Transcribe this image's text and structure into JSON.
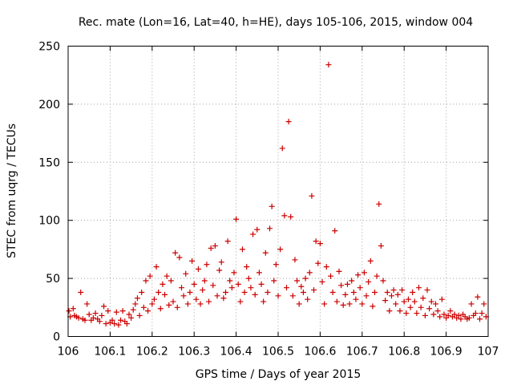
{
  "chart_data": {
    "type": "scatter",
    "title": "Rec. mate (Lon=16, Lat=40, h=HE), days 105-106, 2015, window 004",
    "xlabel": "GPS time / Days of year 2015",
    "ylabel": "STEC from uqrg / TECUs",
    "xlim": [
      106,
      107
    ],
    "ylim": [
      0,
      250
    ],
    "xticks": [
      106,
      106.1,
      106.2,
      106.3,
      106.4,
      106.5,
      106.6,
      106.7,
      106.8,
      106.9,
      107
    ],
    "xtick_labels": [
      "106",
      "106.1",
      "106.2",
      "106.3",
      "106.4",
      "106.5",
      "106.6",
      "106.7",
      "106.8",
      "106.9",
      "107"
    ],
    "yticks": [
      0,
      50,
      100,
      150,
      200,
      250
    ],
    "ytick_labels": [
      "0",
      "50",
      "100",
      "150",
      "200",
      "250"
    ],
    "grid": true,
    "legend": "none",
    "marker": "plus",
    "color": "#cc0000",
    "series": [
      {
        "points": [
          [
            106.002,
            22
          ],
          [
            106.005,
            17
          ],
          [
            106.012,
            24
          ],
          [
            106.015,
            18
          ],
          [
            106.02,
            17
          ],
          [
            106.025,
            16
          ],
          [
            106.03,
            38
          ],
          [
            106.035,
            15
          ],
          [
            106.04,
            14
          ],
          [
            106.045,
            28
          ],
          [
            106.05,
            19
          ],
          [
            106.055,
            14
          ],
          [
            106.06,
            16
          ],
          [
            106.065,
            20
          ],
          [
            106.07,
            15
          ],
          [
            106.075,
            13
          ],
          [
            106.08,
            18
          ],
          [
            106.085,
            26
          ],
          [
            106.09,
            11
          ],
          [
            106.095,
            22
          ],
          [
            106.1,
            12
          ],
          [
            106.105,
            14
          ],
          [
            106.11,
            11
          ],
          [
            106.115,
            21
          ],
          [
            106.12,
            10
          ],
          [
            106.125,
            14
          ],
          [
            106.13,
            22
          ],
          [
            106.135,
            13
          ],
          [
            106.14,
            11
          ],
          [
            106.145,
            19
          ],
          [
            106.15,
            16
          ],
          [
            106.155,
            23
          ],
          [
            106.16,
            28
          ],
          [
            106.165,
            33
          ],
          [
            106.17,
            18
          ],
          [
            106.175,
            38
          ],
          [
            106.18,
            25
          ],
          [
            106.185,
            48
          ],
          [
            106.19,
            22
          ],
          [
            106.195,
            52
          ],
          [
            106.2,
            28
          ],
          [
            106.205,
            32
          ],
          [
            106.21,
            60
          ],
          [
            106.215,
            38
          ],
          [
            106.22,
            24
          ],
          [
            106.225,
            45
          ],
          [
            106.23,
            36
          ],
          [
            106.235,
            52
          ],
          [
            106.24,
            27
          ],
          [
            106.245,
            48
          ],
          [
            106.25,
            30
          ],
          [
            106.255,
            72
          ],
          [
            106.26,
            25
          ],
          [
            106.265,
            68
          ],
          [
            106.27,
            42
          ],
          [
            106.275,
            35
          ],
          [
            106.28,
            54
          ],
          [
            106.285,
            28
          ],
          [
            106.29,
            38
          ],
          [
            106.295,
            65
          ],
          [
            106.3,
            45
          ],
          [
            106.305,
            32
          ],
          [
            106.31,
            58
          ],
          [
            106.315,
            28
          ],
          [
            106.32,
            40
          ],
          [
            106.325,
            48
          ],
          [
            106.33,
            62
          ],
          [
            106.335,
            30
          ],
          [
            106.34,
            76
          ],
          [
            106.345,
            44
          ],
          [
            106.35,
            78
          ],
          [
            106.355,
            35
          ],
          [
            106.36,
            57
          ],
          [
            106.365,
            64
          ],
          [
            106.37,
            33
          ],
          [
            106.375,
            38
          ],
          [
            106.38,
            82
          ],
          [
            106.385,
            48
          ],
          [
            106.39,
            42
          ],
          [
            106.395,
            55
          ],
          [
            106.4,
            101
          ],
          [
            106.405,
            45
          ],
          [
            106.41,
            30
          ],
          [
            106.415,
            75
          ],
          [
            106.42,
            38
          ],
          [
            106.425,
            60
          ],
          [
            106.43,
            50
          ],
          [
            106.435,
            42
          ],
          [
            106.44,
            88
          ],
          [
            106.445,
            36
          ],
          [
            106.45,
            92
          ],
          [
            106.455,
            55
          ],
          [
            106.46,
            45
          ],
          [
            106.465,
            30
          ],
          [
            106.47,
            72
          ],
          [
            106.475,
            38
          ],
          [
            106.48,
            93
          ],
          [
            106.485,
            112
          ],
          [
            106.49,
            48
          ],
          [
            106.495,
            62
          ],
          [
            106.5,
            35
          ],
          [
            106.505,
            75
          ],
          [
            106.51,
            162
          ],
          [
            106.515,
            104
          ],
          [
            106.52,
            42
          ],
          [
            106.525,
            185
          ],
          [
            106.53,
            103
          ],
          [
            106.535,
            35
          ],
          [
            106.54,
            66
          ],
          [
            106.545,
            48
          ],
          [
            106.55,
            28
          ],
          [
            106.555,
            43
          ],
          [
            106.56,
            38
          ],
          [
            106.565,
            50
          ],
          [
            106.57,
            32
          ],
          [
            106.575,
            55
          ],
          [
            106.58,
            121
          ],
          [
            106.585,
            40
          ],
          [
            106.59,
            82
          ],
          [
            106.595,
            63
          ],
          [
            106.6,
            80
          ],
          [
            106.605,
            47
          ],
          [
            106.61,
            28
          ],
          [
            106.615,
            60
          ],
          [
            106.62,
            234
          ],
          [
            106.625,
            52
          ],
          [
            106.63,
            38
          ],
          [
            106.635,
            91
          ],
          [
            106.64,
            30
          ],
          [
            106.645,
            56
          ],
          [
            106.65,
            44
          ],
          [
            106.655,
            27
          ],
          [
            106.66,
            36
          ],
          [
            106.665,
            45
          ],
          [
            106.67,
            28
          ],
          [
            106.675,
            48
          ],
          [
            106.68,
            38
          ],
          [
            106.685,
            32
          ],
          [
            106.69,
            53
          ],
          [
            106.695,
            42
          ],
          [
            106.7,
            28
          ],
          [
            106.705,
            55
          ],
          [
            106.71,
            35
          ],
          [
            106.715,
            47
          ],
          [
            106.72,
            65
          ],
          [
            106.725,
            26
          ],
          [
            106.73,
            38
          ],
          [
            106.735,
            52
          ],
          [
            106.74,
            114
          ],
          [
            106.745,
            78
          ],
          [
            106.75,
            48
          ],
          [
            106.755,
            31
          ],
          [
            106.76,
            38
          ],
          [
            106.765,
            22
          ],
          [
            106.77,
            35
          ],
          [
            106.775,
            40
          ],
          [
            106.78,
            28
          ],
          [
            106.785,
            36
          ],
          [
            106.79,
            22
          ],
          [
            106.795,
            40
          ],
          [
            106.8,
            30
          ],
          [
            106.805,
            20
          ],
          [
            106.81,
            32
          ],
          [
            106.815,
            25
          ],
          [
            106.82,
            38
          ],
          [
            106.825,
            30
          ],
          [
            106.83,
            20
          ],
          [
            106.835,
            42
          ],
          [
            106.84,
            25
          ],
          [
            106.845,
            33
          ],
          [
            106.85,
            18
          ],
          [
            106.855,
            40
          ],
          [
            106.86,
            24
          ],
          [
            106.865,
            30
          ],
          [
            106.87,
            19
          ],
          [
            106.875,
            28
          ],
          [
            106.88,
            22
          ],
          [
            106.885,
            17
          ],
          [
            106.89,
            32
          ],
          [
            106.895,
            19
          ],
          [
            106.9,
            16
          ],
          [
            106.905,
            18
          ],
          [
            106.91,
            22
          ],
          [
            106.915,
            17
          ],
          [
            106.92,
            19
          ],
          [
            106.925,
            16
          ],
          [
            106.93,
            18
          ],
          [
            106.935,
            15
          ],
          [
            106.94,
            19
          ],
          [
            106.945,
            17
          ],
          [
            106.95,
            15
          ],
          [
            106.955,
            16
          ],
          [
            106.96,
            28
          ],
          [
            106.965,
            18
          ],
          [
            106.97,
            20
          ],
          [
            106.975,
            34
          ],
          [
            106.98,
            15
          ],
          [
            106.985,
            20
          ],
          [
            106.99,
            28
          ],
          [
            106.995,
            17
          ]
        ]
      }
    ]
  }
}
